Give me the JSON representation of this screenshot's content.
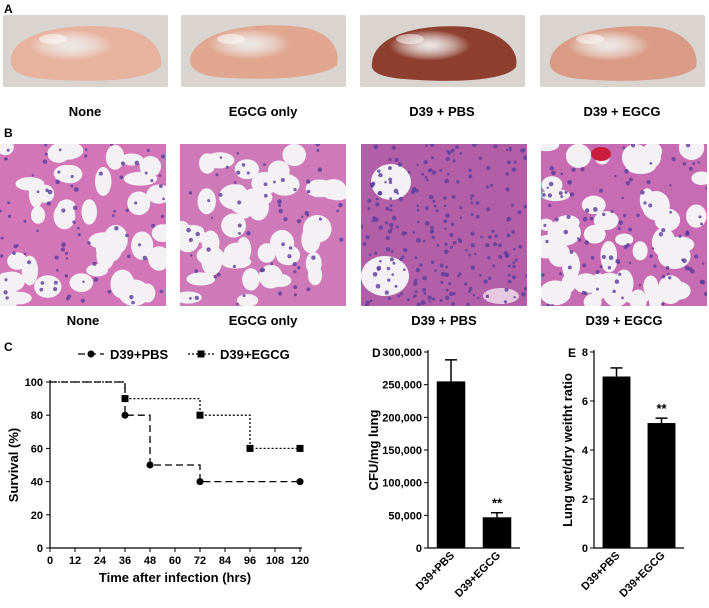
{
  "panel_a": {
    "letter": "A",
    "images": [
      {
        "label": "None",
        "tone": "#e7b29e"
      },
      {
        "label": "EGCG only",
        "tone": "#e0a68f"
      },
      {
        "label": "D39 + PBS",
        "tone": "#8f3f2f"
      },
      {
        "label": "D39 + EGCG",
        "tone": "#d99b85"
      }
    ]
  },
  "panel_b": {
    "letter": "B",
    "images": [
      {
        "label": "None",
        "tissue": "#d276b8"
      },
      {
        "label": "EGCG only",
        "tissue": "#cf7ab8"
      },
      {
        "label": "D39 + PBS",
        "tissue": "#b35fa8"
      },
      {
        "label": "D39 + EGCG",
        "tissue": "#c76cb2"
      }
    ]
  },
  "panel_c": {
    "letter": "C"
  },
  "panel_d": {
    "letter": "D"
  },
  "panel_e": {
    "letter": "E"
  },
  "chart_data": [
    {
      "type": "line",
      "panel": "C",
      "xlabel": "Time after infection (hrs)",
      "ylabel": "Survival (%)",
      "xlim": [
        0,
        120
      ],
      "ylim": [
        0,
        100
      ],
      "xticks": [
        0,
        12,
        24,
        36,
        48,
        60,
        72,
        84,
        96,
        108,
        120
      ],
      "yticks": [
        0,
        20,
        40,
        60,
        80,
        100
      ],
      "legend_position": "top",
      "series": [
        {
          "name": "D39+PBS",
          "marker": "circle",
          "style": "dashed",
          "x": [
            0,
            36,
            48,
            72,
            120
          ],
          "y": [
            100,
            80,
            50,
            40,
            40
          ]
        },
        {
          "name": "D39+EGCG",
          "marker": "square",
          "style": "dotted",
          "x": [
            0,
            36,
            72,
            96,
            120
          ],
          "y": [
            100,
            90,
            80,
            60,
            60
          ]
        }
      ]
    },
    {
      "type": "bar",
      "panel": "D",
      "ylabel": "CFU/mg lung",
      "categories": [
        "D39+PBS",
        "D39+EGCG"
      ],
      "values": [
        255000,
        47000
      ],
      "errors": [
        33000,
        7000
      ],
      "significance": [
        "",
        "**"
      ],
      "ylim": [
        0,
        300000
      ],
      "ytick_labels": [
        "0",
        "50,000",
        "100,000",
        "150,000",
        "200,000",
        "250,000",
        "300,000"
      ]
    },
    {
      "type": "bar",
      "panel": "E",
      "ylabel": "Lung wet/dry weitht ratio",
      "categories": [
        "D39+PBS",
        "D39+EGCG"
      ],
      "values": [
        7.0,
        5.1
      ],
      "errors": [
        0.35,
        0.2
      ],
      "significance": [
        "",
        "**"
      ],
      "ylim": [
        0,
        8
      ],
      "ytick_labels": [
        "0",
        "2",
        "4",
        "6",
        "8"
      ]
    }
  ]
}
